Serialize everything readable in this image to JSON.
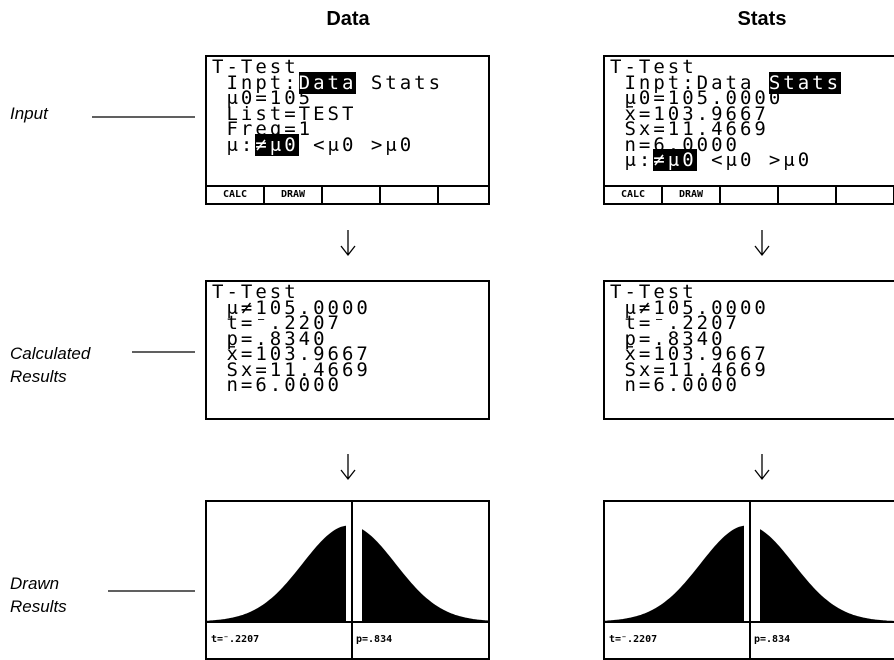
{
  "column_headers": [
    "Data",
    "Stats"
  ],
  "row_labels": [
    [
      "Input"
    ],
    [
      "Calculated",
      "Results"
    ],
    [
      "Drawn",
      "Results"
    ]
  ],
  "input_screens": [
    {
      "lines": [
        [
          {
            "text": "T-Test"
          }
        ],
        [
          {
            "text": " Inpt:"
          },
          {
            "text": "Data",
            "inverse": true
          },
          {
            "text": " Stats"
          }
        ],
        [
          {
            "text": " μ0=105"
          }
        ],
        [
          {
            "text": " List=TEST"
          }
        ],
        [
          {
            "text": " Freq=1"
          }
        ],
        [
          {
            "text": " μ:"
          },
          {
            "text": "≠μ0",
            "inverse": true
          },
          {
            "text": " <μ0 >μ0"
          }
        ]
      ],
      "menu": [
        "CALC",
        "DRAW"
      ]
    },
    {
      "lines": [
        [
          {
            "text": "T-Test"
          }
        ],
        [
          {
            "text": " Inpt:Data "
          },
          {
            "text": "Stats",
            "inverse": true
          }
        ],
        [
          {
            "text": " μ0=105.0000"
          }
        ],
        [
          {
            "text": " x̄=103.9667"
          }
        ],
        [
          {
            "text": " Sx=11.4669"
          }
        ],
        [
          {
            "text": " n=6.0000"
          }
        ],
        [
          {
            "text": " μ:"
          },
          {
            "text": "≠μ0",
            "inverse": true
          },
          {
            "text": " <μ0 >μ0"
          }
        ]
      ],
      "menu": [
        "CALC",
        "DRAW"
      ]
    }
  ],
  "result_screens": [
    {
      "lines": [
        "T-Test",
        " μ≠105.0000",
        " t=⁻.2207",
        " p=.8340",
        " x̄=103.9667",
        " Sx=11.4669",
        " n=6.0000"
      ]
    },
    {
      "lines": [
        "T-Test",
        " μ≠105.0000",
        " t=⁻.2207",
        " p=.8340",
        " x̄=103.9667",
        " Sx=11.4669",
        " n=6.0000"
      ]
    }
  ],
  "graph_screens": [
    {
      "left_label": "t=⁻.2207",
      "right_label": "p=.834"
    },
    {
      "left_label": "t=⁻.2207",
      "right_label": "p=.834"
    }
  ]
}
